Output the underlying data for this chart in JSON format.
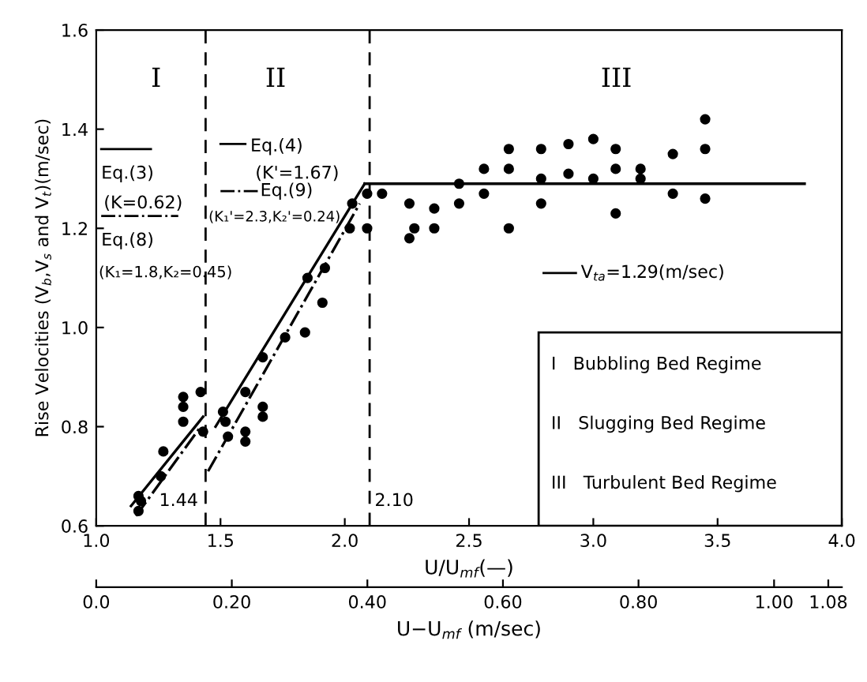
{
  "chart_data": {
    "type": "scatter",
    "xlabel": "U/U$_{mf}$(—)",
    "ylabel": "Rise Velocities (V$_{b}$,V$_{s}$ and V$_{t}$)(m/sec)",
    "x2label": "U−U$_{mf}$ (m/sec)",
    "xlim": [
      1.0,
      4.0
    ],
    "ylim": [
      0.6,
      1.6
    ],
    "xticks": [
      {
        "value": 1.0,
        "label": "1.0"
      },
      1.5,
      {
        "value": 2.0,
        "label": "2.0"
      },
      2.5,
      {
        "value": 3.0,
        "label": "3.0"
      },
      3.5,
      {
        "value": 4.0,
        "label": "4.0"
      }
    ],
    "yticks": [
      0.6,
      0.8,
      {
        "value": 1.0,
        "label": "1.0"
      },
      1.2,
      1.4,
      1.6
    ],
    "x2lim": [
      0.0,
      1.1
    ],
    "x2ticks": [
      {
        "value": 0.0,
        "label": "0.0"
      },
      {
        "value": 0.2,
        "label": "0.20"
      },
      {
        "value": 0.4,
        "label": "0.40"
      },
      {
        "value": 0.6,
        "label": "0.60"
      },
      {
        "value": 0.8,
        "label": "0.80"
      },
      {
        "value": 1.0,
        "label": "1.00"
      },
      {
        "value": 1.08,
        "label": "1.08"
      }
    ],
    "grid": false,
    "series": [
      {
        "color": "#000000",
        "marker": "circle",
        "x": [
          1.17,
          1.17,
          1.18,
          1.27,
          1.26,
          1.35,
          1.35,
          1.35,
          1.42,
          1.43,
          1.51,
          1.52,
          1.53,
          1.6,
          1.6,
          1.67,
          1.67,
          1.6,
          1.67,
          1.76,
          1.84,
          1.85,
          1.91,
          1.92,
          2.03,
          2.02,
          2.09,
          2.09,
          2.15,
          2.26,
          2.28,
          2.26,
          2.36,
          2.36,
          2.46,
          2.46,
          2.56,
          2.56,
          2.66,
          2.66,
          2.66,
          2.79,
          2.79,
          2.79,
          2.9,
          2.9,
          3.0,
          3.0,
          3.09,
          3.09,
          3.09,
          3.19,
          3.19,
          3.32,
          3.32,
          3.45,
          3.45,
          3.45
        ],
        "values": [
          0.66,
          0.63,
          0.65,
          0.75,
          0.7,
          0.86,
          0.84,
          0.81,
          0.87,
          0.79,
          0.83,
          0.81,
          0.78,
          0.79,
          0.77,
          0.84,
          0.82,
          0.87,
          0.94,
          0.98,
          0.99,
          1.1,
          1.05,
          1.12,
          1.25,
          1.2,
          1.27,
          1.2,
          1.27,
          1.25,
          1.2,
          1.18,
          1.24,
          1.2,
          1.29,
          1.25,
          1.32,
          1.27,
          1.36,
          1.32,
          1.2,
          1.36,
          1.3,
          1.25,
          1.37,
          1.31,
          1.38,
          1.3,
          1.36,
          1.32,
          1.23,
          1.32,
          1.3,
          1.35,
          1.27,
          1.42,
          1.36,
          1.26
        ]
      },
      {
        "type": "line",
        "color": "#000000",
        "line_style": "solid",
        "x": [
          1.14,
          1.43
        ],
        "values": [
          0.64,
          0.82
        ]
      },
      {
        "type": "line",
        "color": "#000000",
        "line_style": "dashdot",
        "x": [
          1.16,
          1.42
        ],
        "values": [
          0.62,
          0.8
        ]
      },
      {
        "type": "line",
        "color": "#000000",
        "line_style": "solid",
        "x": [
          1.48,
          2.08
        ],
        "values": [
          0.8,
          1.29
        ]
      },
      {
        "type": "line",
        "color": "#000000",
        "line_style": "dashdot",
        "x": [
          1.45,
          2.06
        ],
        "values": [
          0.71,
          1.25
        ]
      },
      {
        "type": "line",
        "color": "#000000",
        "line_style": "solid",
        "x": [
          2.08,
          3.85
        ],
        "values": [
          1.29,
          1.29
        ]
      }
    ],
    "ref_lines": [
      {
        "axis": "x",
        "value": 1.44,
        "label": "1.44",
        "line_style": "dashed",
        "color": "#000000"
      },
      {
        "axis": "x",
        "value": 2.1,
        "label": "2.10",
        "line_style": "dashed",
        "color": "#000000"
      }
    ],
    "annotations": [
      "I",
      "II",
      "III",
      "Eq.(3)",
      "(K=0.62)",
      "Eq.(8)",
      "(K₁=1.8,K₂=0.45)",
      "Eq.(4)",
      "(K'=1.67)",
      "Eq.(9)",
      "(K₁'=2.3,K₂'=0.24)",
      "V$_{ta}$=1.29(m/sec)",
      "I   Bubbling Bed Regime",
      "II   Slugging Bed Regime",
      "III   Turbulent Bed Regime"
    ]
  }
}
